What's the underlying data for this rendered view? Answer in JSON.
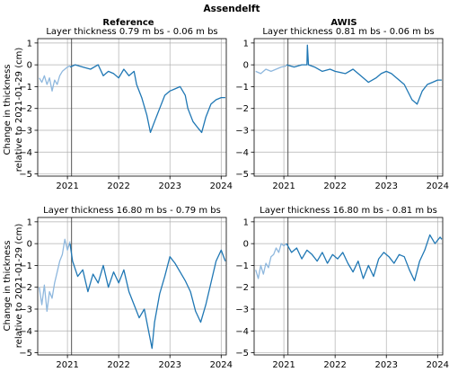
{
  "figure": {
    "suptitle": "Assendelft",
    "column_titles": [
      "Reference",
      "AWIS"
    ],
    "ylabel_lines": [
      "Change in thickness",
      "relative to 2021-01-29 (cm)"
    ]
  },
  "colors": {
    "main": "#1f77b4",
    "pre": "#8fb8de",
    "grid": "#b0b0b0",
    "vline": "#555555"
  },
  "chart_data": [
    {
      "type": "line",
      "title": "Layer thickness 0.79 m bs - 0.06 m bs",
      "xlabel": "",
      "ylabel": "",
      "xlim": [
        2020.42,
        2024.1
      ],
      "ylim": [
        -5.1,
        1.2
      ],
      "xticks": [
        2021,
        2022,
        2023,
        2024
      ],
      "yticks": [
        1,
        0,
        -1,
        -2,
        -3,
        -4,
        -5
      ],
      "ref_line_x": 2021.08,
      "grid": true,
      "series": [
        {
          "style": "pre",
          "x": [
            2020.45,
            2020.5,
            2020.55,
            2020.6,
            2020.65,
            2020.7,
            2020.75,
            2020.8,
            2020.85,
            2020.9,
            2020.95,
            2021.0,
            2021.05
          ],
          "y": [
            -0.6,
            -0.8,
            -0.5,
            -0.9,
            -0.6,
            -1.2,
            -0.7,
            -0.9,
            -0.5,
            -0.3,
            -0.2,
            -0.1,
            -0.05
          ]
        },
        {
          "style": "main",
          "x": [
            2021.05,
            2021.15,
            2021.3,
            2021.45,
            2021.6,
            2021.7,
            2021.8,
            2021.9,
            2022.0,
            2022.1,
            2022.2,
            2022.3,
            2022.35,
            2022.45,
            2022.55,
            2022.62,
            2022.7,
            2022.8,
            2022.9,
            2023.0,
            2023.1,
            2023.2,
            2023.3,
            2023.35,
            2023.45,
            2023.55,
            2023.62,
            2023.7,
            2023.8,
            2023.9,
            2024.0,
            2024.08
          ],
          "y": [
            -0.1,
            0.0,
            -0.1,
            -0.2,
            0.0,
            -0.5,
            -0.3,
            -0.4,
            -0.6,
            -0.2,
            -0.5,
            -0.3,
            -0.9,
            -1.5,
            -2.3,
            -3.1,
            -2.6,
            -2.0,
            -1.4,
            -1.2,
            -1.1,
            -1.0,
            -1.4,
            -2.0,
            -2.6,
            -2.9,
            -3.1,
            -2.4,
            -1.8,
            -1.6,
            -1.5,
            -1.5
          ]
        }
      ]
    },
    {
      "type": "line",
      "title": "Layer thickness 0.81 m bs - 0.06 m bs",
      "xlabel": "",
      "ylabel": "",
      "xlim": [
        2020.42,
        2024.1
      ],
      "ylim": [
        -5.1,
        1.2
      ],
      "xticks": [
        2021,
        2022,
        2023,
        2024
      ],
      "yticks": [
        1,
        0,
        -1,
        -2,
        -3,
        -4,
        -5
      ],
      "ref_line_x": 2021.08,
      "grid": true,
      "series": [
        {
          "style": "pre",
          "x": [
            2020.45,
            2020.55,
            2020.65,
            2020.75,
            2020.85,
            2020.95,
            2021.05
          ],
          "y": [
            -0.3,
            -0.4,
            -0.2,
            -0.3,
            -0.2,
            -0.1,
            -0.05
          ]
        },
        {
          "style": "main",
          "x": [
            2021.05,
            2021.2,
            2021.35,
            2021.45,
            2021.46,
            2021.48,
            2021.6,
            2021.75,
            2021.9,
            2022.0,
            2022.2,
            2022.35,
            2022.5,
            2022.65,
            2022.8,
            2022.9,
            2023.0,
            2023.1,
            2023.2,
            2023.35,
            2023.5,
            2023.6,
            2023.7,
            2023.8,
            2023.9,
            2024.0,
            2024.08
          ],
          "y": [
            0.0,
            -0.1,
            0.0,
            0.0,
            0.9,
            0.0,
            -0.1,
            -0.3,
            -0.2,
            -0.3,
            -0.4,
            -0.2,
            -0.5,
            -0.8,
            -0.6,
            -0.4,
            -0.3,
            -0.4,
            -0.6,
            -0.9,
            -1.6,
            -1.8,
            -1.2,
            -0.9,
            -0.8,
            -0.7,
            -0.7
          ]
        }
      ]
    },
    {
      "type": "line",
      "title": "Layer thickness 16.80 m bs - 0.79 m bs",
      "xlabel": "",
      "ylabel": "",
      "xlim": [
        2020.42,
        2024.1
      ],
      "ylim": [
        -5.1,
        1.2
      ],
      "xticks": [
        2021,
        2022,
        2023,
        2024
      ],
      "yticks": [
        1,
        0,
        -1,
        -2,
        -3,
        -4,
        -5
      ],
      "ref_line_x": 2021.08,
      "grid": true,
      "series": [
        {
          "style": "pre",
          "x": [
            2020.45,
            2020.5,
            2020.55,
            2020.6,
            2020.65,
            2020.7,
            2020.75,
            2020.8,
            2020.85,
            2020.9,
            2020.95,
            2021.0,
            2021.05
          ],
          "y": [
            -2.0,
            -2.8,
            -1.9,
            -3.1,
            -2.2,
            -2.5,
            -1.8,
            -1.3,
            -0.8,
            -0.5,
            0.2,
            -0.3,
            0.1
          ]
        },
        {
          "style": "main",
          "x": [
            2021.05,
            2021.1,
            2021.2,
            2021.3,
            2021.4,
            2021.5,
            2021.6,
            2021.7,
            2021.8,
            2021.9,
            2022.0,
            2022.1,
            2022.2,
            2022.3,
            2022.4,
            2022.5,
            2022.6,
            2022.65,
            2022.7,
            2022.8,
            2022.9,
            2023.0,
            2023.1,
            2023.2,
            2023.3,
            2023.4,
            2023.5,
            2023.6,
            2023.7,
            2023.8,
            2023.9,
            2024.0,
            2024.08
          ],
          "y": [
            0.0,
            -0.8,
            -1.5,
            -1.2,
            -2.2,
            -1.4,
            -1.8,
            -1.0,
            -2.0,
            -1.3,
            -1.8,
            -1.2,
            -2.2,
            -2.8,
            -3.4,
            -3.0,
            -4.2,
            -4.8,
            -3.6,
            -2.3,
            -1.5,
            -0.6,
            -0.9,
            -1.3,
            -1.7,
            -2.2,
            -3.1,
            -3.6,
            -2.8,
            -1.8,
            -0.8,
            -0.3,
            -0.8
          ]
        }
      ]
    },
    {
      "type": "line",
      "title": "Layer thickness 16.80 m bs - 0.81 m bs",
      "xlabel": "",
      "ylabel": "",
      "xlim": [
        2020.42,
        2024.1
      ],
      "ylim": [
        -5.1,
        1.2
      ],
      "xticks": [
        2021,
        2022,
        2023,
        2024
      ],
      "yticks": [
        1,
        0,
        -1,
        -2,
        -3,
        -4,
        -5
      ],
      "ref_line_x": 2021.08,
      "grid": true,
      "series": [
        {
          "style": "pre",
          "x": [
            2020.45,
            2020.5,
            2020.55,
            2020.6,
            2020.65,
            2020.7,
            2020.75,
            2020.8,
            2020.85,
            2020.9,
            2020.95,
            2021.0,
            2021.05
          ],
          "y": [
            -1.2,
            -1.6,
            -1.0,
            -1.4,
            -0.9,
            -1.1,
            -0.6,
            -0.5,
            -0.2,
            -0.4,
            0.0,
            -0.1,
            0.0
          ]
        },
        {
          "style": "main",
          "x": [
            2021.05,
            2021.15,
            2021.25,
            2021.35,
            2021.45,
            2021.55,
            2021.65,
            2021.75,
            2021.85,
            2021.95,
            2022.05,
            2022.15,
            2022.25,
            2022.35,
            2022.45,
            2022.55,
            2022.65,
            2022.75,
            2022.85,
            2022.95,
            2023.05,
            2023.15,
            2023.25,
            2023.35,
            2023.45,
            2023.55,
            2023.65,
            2023.75,
            2023.85,
            2023.95,
            2024.05,
            2024.08
          ],
          "y": [
            0.0,
            -0.4,
            -0.2,
            -0.7,
            -0.3,
            -0.5,
            -0.8,
            -0.4,
            -0.9,
            -0.5,
            -0.7,
            -0.4,
            -0.9,
            -1.3,
            -0.8,
            -1.6,
            -1.0,
            -1.5,
            -0.7,
            -0.4,
            -0.6,
            -0.9,
            -0.5,
            -0.6,
            -1.2,
            -1.7,
            -0.8,
            -0.3,
            0.4,
            0.0,
            0.3,
            0.2
          ]
        }
      ]
    }
  ]
}
